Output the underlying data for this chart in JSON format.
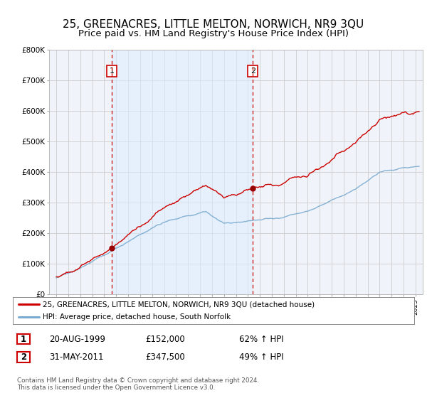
{
  "title": "25, GREENACRES, LITTLE MELTON, NORWICH, NR9 3QU",
  "subtitle": "Price paid vs. HM Land Registry's House Price Index (HPI)",
  "title_fontsize": 11,
  "subtitle_fontsize": 9.5,
  "ylim": [
    0,
    800000
  ],
  "yticks": [
    0,
    100000,
    200000,
    300000,
    400000,
    500000,
    600000,
    700000,
    800000
  ],
  "ytick_labels": [
    "£0",
    "£100K",
    "£200K",
    "£300K",
    "£400K",
    "£500K",
    "£600K",
    "£700K",
    "£800K"
  ],
  "background_color": "#ffffff",
  "plot_bg_color": "#f0f4fa",
  "grid_color": "#cccccc",
  "house_color": "#cc0000",
  "hpi_color": "#7aaad0",
  "sale_marker_color": "#990000",
  "sale1_year": 1999.64,
  "sale1_price": 152000,
  "sale2_year": 2011.41,
  "sale2_price": 347500,
  "legend_house": "25, GREENACRES, LITTLE MELTON, NORWICH, NR9 3QU (detached house)",
  "legend_hpi": "HPI: Average price, detached house, South Norfolk",
  "footnote": "Contains HM Land Registry data © Crown copyright and database right 2024.\nThis data is licensed under the Open Government Licence v3.0.",
  "table_rows": [
    [
      "1",
      "20-AUG-1999",
      "£152,000",
      "62% ↑ HPI"
    ],
    [
      "2",
      "31-MAY-2011",
      "£347,500",
      "49% ↑ HPI"
    ]
  ]
}
